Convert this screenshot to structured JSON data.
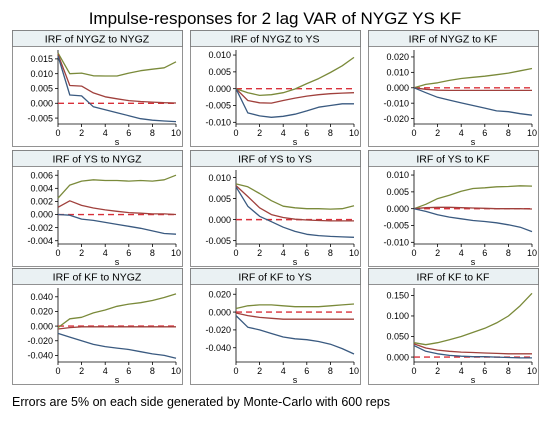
{
  "figure": {
    "title": "Impulse-responses for 2 lag VAR of NYGZ YS KF",
    "footnote": "Errors are 5% on each side generated by Monte-Carlo with 600 reps"
  },
  "colors": {
    "upper": "#7a8a3a",
    "irf": "#a0403c",
    "lower": "#3a5a80",
    "zero_line": "#d9303a",
    "panel_header_bg": "#eaf1f3"
  },
  "chart_data": [
    {
      "type": "line",
      "title": "IRF of NYGZ to NYGZ",
      "xlabel": "s",
      "ylabel": "",
      "xlim": [
        0,
        10
      ],
      "ylim": [
        -0.007,
        0.018
      ],
      "xticks": [
        0,
        2,
        4,
        6,
        8,
        10
      ],
      "yticks": [
        -0.005,
        0,
        0.005,
        0.01,
        0.015
      ],
      "ytick_labels": [
        "-0.005",
        "0.000",
        "0.005",
        "0.010",
        "0.015"
      ],
      "x": [
        0,
        1,
        2,
        3,
        4,
        5,
        6,
        7,
        8,
        9,
        10
      ],
      "series": [
        {
          "role": "upper",
          "values": [
            0.017,
            0.01,
            0.0102,
            0.0093,
            0.0092,
            0.0092,
            0.0102,
            0.011,
            0.0115,
            0.012,
            0.014
          ]
        },
        {
          "role": "irf",
          "values": [
            0.0165,
            0.006,
            0.0058,
            0.0035,
            0.0022,
            0.0015,
            0.0009,
            0.0006,
            0.0004,
            0.0002,
            0.0001
          ]
        },
        {
          "role": "lower",
          "values": [
            0.016,
            0.0028,
            0.0025,
            -0.0012,
            -0.0022,
            -0.0032,
            -0.0042,
            -0.0052,
            -0.0057,
            -0.006,
            -0.0062
          ]
        }
      ]
    },
    {
      "type": "line",
      "title": "IRF of NYGZ to YS",
      "xlabel": "s",
      "ylabel": "",
      "xlim": [
        0,
        10
      ],
      "ylim": [
        -0.0105,
        0.0115
      ],
      "xticks": [
        0,
        2,
        4,
        6,
        8,
        10
      ],
      "yticks": [
        -0.01,
        -0.005,
        0,
        0.005,
        0.01
      ],
      "ytick_labels": [
        "-0.010",
        "-0.005",
        "0.000",
        "0.005",
        "0.010"
      ],
      "x": [
        0,
        1,
        2,
        3,
        4,
        5,
        6,
        7,
        8,
        9,
        10
      ],
      "series": [
        {
          "role": "upper",
          "values": [
            0,
            -0.0012,
            -0.002,
            -0.0018,
            -0.0012,
            -0.0001,
            0.0015,
            0.003,
            0.0048,
            0.0068,
            0.0093
          ]
        },
        {
          "role": "irf",
          "values": [
            0,
            -0.0035,
            -0.0042,
            -0.0043,
            -0.0035,
            -0.0028,
            -0.0022,
            -0.0018,
            -0.0015,
            -0.0013,
            -0.0012
          ]
        },
        {
          "role": "lower",
          "values": [
            0,
            -0.0072,
            -0.0081,
            -0.0085,
            -0.0082,
            -0.0076,
            -0.0066,
            -0.0055,
            -0.005,
            -0.0045,
            -0.0045
          ]
        }
      ]
    },
    {
      "type": "line",
      "title": "IRF of NYGZ to KF",
      "xlabel": "s",
      "ylabel": "",
      "xlim": [
        0,
        10
      ],
      "ylim": [
        -0.0235,
        0.0245
      ],
      "xticks": [
        0,
        2,
        4,
        6,
        8,
        10
      ],
      "yticks": [
        -0.02,
        -0.01,
        0,
        0.01,
        0.02
      ],
      "ytick_labels": [
        "-0.020",
        "-0.010",
        "0.000",
        "0.010",
        "0.020"
      ],
      "x": [
        0,
        1,
        2,
        3,
        4,
        5,
        6,
        7,
        8,
        9,
        10
      ],
      "series": [
        {
          "role": "upper",
          "values": [
            0,
            0.0022,
            0.0032,
            0.0048,
            0.006,
            0.0068,
            0.0075,
            0.0085,
            0.0095,
            0.011,
            0.0125
          ]
        },
        {
          "role": "irf",
          "values": [
            0,
            -0.001,
            -0.0016,
            -0.0017,
            -0.0017,
            -0.0017,
            -0.0017,
            -0.0017,
            -0.0017,
            -0.0017,
            -0.0017
          ]
        },
        {
          "role": "lower",
          "values": [
            0,
            -0.0032,
            -0.0062,
            -0.008,
            -0.0098,
            -0.0115,
            -0.0132,
            -0.015,
            -0.0155,
            -0.0168,
            -0.0178
          ]
        }
      ]
    },
    {
      "type": "line",
      "title": "IRF of YS to NYGZ",
      "xlabel": "s",
      "ylabel": "",
      "xlim": [
        0,
        10
      ],
      "ylim": [
        -0.0045,
        0.0068
      ],
      "xticks": [
        0,
        2,
        4,
        6,
        8,
        10
      ],
      "yticks": [
        -0.004,
        -0.002,
        0,
        0.002,
        0.004,
        0.006
      ],
      "ytick_labels": [
        "-0.004",
        "-0.002",
        "0.000",
        "0.002",
        "0.004",
        "0.006"
      ],
      "x": [
        0,
        1,
        2,
        3,
        4,
        5,
        6,
        7,
        8,
        9,
        10
      ],
      "series": [
        {
          "role": "upper",
          "values": [
            0.0025,
            0.0045,
            0.0051,
            0.0053,
            0.0052,
            0.0052,
            0.0051,
            0.0052,
            0.0051,
            0.0053,
            0.006
          ]
        },
        {
          "role": "irf",
          "values": [
            0.0011,
            0.0021,
            0.0014,
            0.001,
            0.0007,
            0.0005,
            0.0003,
            0.0002,
            0.0001,
            0.0001,
            0
          ]
        },
        {
          "role": "lower",
          "values": [
            0,
            -0.0001,
            -0.0007,
            -0.0009,
            -0.0012,
            -0.0015,
            -0.0018,
            -0.0021,
            -0.0025,
            -0.0029,
            -0.003
          ]
        }
      ]
    },
    {
      "type": "line",
      "title": "IRF of YS to YS",
      "xlabel": "s",
      "ylabel": "",
      "xlim": [
        0,
        10
      ],
      "ylim": [
        -0.0058,
        0.0118
      ],
      "xticks": [
        0,
        2,
        4,
        6,
        8,
        10
      ],
      "yticks": [
        -0.005,
        0,
        0.005,
        0.01
      ],
      "ytick_labels": [
        "-0.005",
        "0.000",
        "0.005",
        "0.010"
      ],
      "x": [
        0,
        1,
        2,
        3,
        4,
        5,
        6,
        7,
        8,
        9,
        10
      ],
      "series": [
        {
          "role": "upper",
          "values": [
            0.0085,
            0.0078,
            0.0062,
            0.0045,
            0.0032,
            0.0028,
            0.0026,
            0.0026,
            0.0025,
            0.0026,
            0.0033
          ]
        },
        {
          "role": "irf",
          "values": [
            0.0081,
            0.0055,
            0.0028,
            0.0012,
            0.0005,
            0.0001,
            -0.0001,
            -0.0002,
            -0.0003,
            -0.0003,
            -0.0003
          ]
        },
        {
          "role": "lower",
          "values": [
            0.0078,
            0.0032,
            0.0008,
            -0.0005,
            -0.0018,
            -0.0028,
            -0.0035,
            -0.0038,
            -0.004,
            -0.0041,
            -0.0042
          ]
        }
      ]
    },
    {
      "type": "line",
      "title": "IRF of YS to KF",
      "xlabel": "s",
      "ylabel": "",
      "xlim": [
        0,
        10
      ],
      "ylim": [
        -0.0105,
        0.0115
      ],
      "xticks": [
        0,
        2,
        4,
        6,
        8,
        10
      ],
      "yticks": [
        -0.01,
        -0.005,
        0,
        0.005,
        0.01
      ],
      "ytick_labels": [
        "-0.010",
        "-0.005",
        "0.000",
        "0.005",
        "0.010"
      ],
      "x": [
        0,
        1,
        2,
        3,
        4,
        5,
        6,
        7,
        8,
        9,
        10
      ],
      "series": [
        {
          "role": "upper",
          "values": [
            0,
            0.0013,
            0.003,
            0.004,
            0.0052,
            0.006,
            0.0062,
            0.0065,
            0.0066,
            0.0068,
            0.0067
          ]
        },
        {
          "role": "irf",
          "values": [
            0,
            0.0003,
            0.0004,
            0.0004,
            0.0003,
            0.0002,
            0.0001,
            0,
            0,
            0,
            -0.0001
          ]
        },
        {
          "role": "lower",
          "values": [
            0,
            -0.0008,
            -0.0018,
            -0.0025,
            -0.003,
            -0.0035,
            -0.0038,
            -0.0042,
            -0.0048,
            -0.0055,
            -0.0068
          ]
        }
      ]
    },
    {
      "type": "line",
      "title": "IRF of KF to NYGZ",
      "xlabel": "s",
      "ylabel": "",
      "xlim": [
        0,
        10
      ],
      "ylim": [
        -0.049,
        0.052
      ],
      "xticks": [
        0,
        2,
        4,
        6,
        8,
        10
      ],
      "yticks": [
        -0.04,
        -0.02,
        0,
        0.02,
        0.04
      ],
      "ytick_labels": [
        "-0.040",
        "-0.020",
        "0.000",
        "0.020",
        "0.040"
      ],
      "x": [
        0,
        1,
        2,
        3,
        4,
        5,
        6,
        7,
        8,
        9,
        10
      ],
      "series": [
        {
          "role": "upper",
          "values": [
            -0.002,
            0.01,
            0.012,
            0.018,
            0.022,
            0.027,
            0.03,
            0.032,
            0.035,
            0.039,
            0.044
          ]
        },
        {
          "role": "irf",
          "values": [
            -0.004,
            -0.002,
            -0.001,
            -0.001,
            -0.001,
            -0.001,
            -0.001,
            -0.001,
            -0.001,
            -0.001,
            -0.001
          ]
        },
        {
          "role": "lower",
          "values": [
            -0.01,
            -0.015,
            -0.02,
            -0.025,
            -0.028,
            -0.03,
            -0.032,
            -0.035,
            -0.038,
            -0.04,
            -0.044
          ]
        }
      ]
    },
    {
      "type": "line",
      "title": "IRF of KF to YS",
      "xlabel": "s",
      "ylabel": "",
      "xlim": [
        0,
        10
      ],
      "ylim": [
        -0.056,
        0.027
      ],
      "xticks": [
        0,
        2,
        4,
        6,
        8,
        10
      ],
      "yticks": [
        -0.04,
        -0.02,
        0,
        0.02
      ],
      "ytick_labels": [
        "-0.040",
        "-0.020",
        "0.000",
        "0.020"
      ],
      "x": [
        0,
        1,
        2,
        3,
        4,
        5,
        6,
        7,
        8,
        9,
        10
      ],
      "series": [
        {
          "role": "upper",
          "values": [
            0.004,
            0.007,
            0.008,
            0.008,
            0.007,
            0.006,
            0.006,
            0.006,
            0.007,
            0.008,
            0.009
          ]
        },
        {
          "role": "irf",
          "values": [
            -0.001,
            -0.004,
            -0.006,
            -0.007,
            -0.008,
            -0.008,
            -0.008,
            -0.008,
            -0.008,
            -0.008,
            -0.008
          ]
        },
        {
          "role": "lower",
          "values": [
            -0.004,
            -0.017,
            -0.02,
            -0.024,
            -0.028,
            -0.03,
            -0.031,
            -0.033,
            -0.036,
            -0.041,
            -0.047
          ]
        }
      ]
    },
    {
      "type": "line",
      "title": "IRF of KF to KF",
      "xlabel": "s",
      "ylabel": "",
      "xlim": [
        0,
        10
      ],
      "ylim": [
        -0.012,
        0.168
      ],
      "xticks": [
        0,
        2,
        4,
        6,
        8,
        10
      ],
      "yticks": [
        0,
        0.05,
        0.1,
        0.15
      ],
      "ytick_labels": [
        "0.000",
        "0.050",
        "0.100",
        "0.150"
      ],
      "x": [
        0,
        1,
        2,
        3,
        4,
        5,
        6,
        7,
        8,
        9,
        10
      ],
      "series": [
        {
          "role": "upper",
          "values": [
            0.035,
            0.03,
            0.035,
            0.042,
            0.05,
            0.06,
            0.07,
            0.083,
            0.1,
            0.125,
            0.155
          ]
        },
        {
          "role": "irf",
          "values": [
            0.032,
            0.022,
            0.017,
            0.014,
            0.012,
            0.011,
            0.01,
            0.009,
            0.008,
            0.008,
            0.008
          ]
        },
        {
          "role": "lower",
          "values": [
            0.028,
            0.014,
            0.008,
            0.004,
            0.002,
            0.001,
            0.001,
            0,
            -0.001,
            -0.002,
            -0.002
          ]
        }
      ]
    }
  ]
}
